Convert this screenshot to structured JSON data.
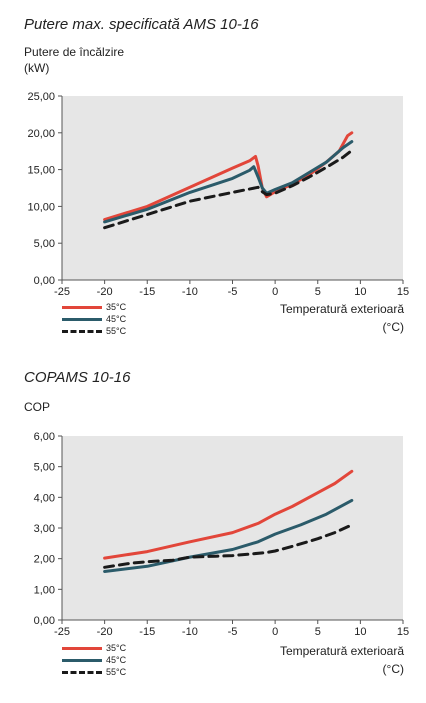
{
  "colors": {
    "s35": "#e2463a",
    "s45": "#2b5b6a",
    "s55": "#1a1a1a",
    "plot_bg": "#e6e6e6"
  },
  "charts": [
    {
      "title": "Putere max. specificată AMS 10-16",
      "ylabel_line1": "Putere de încălzire",
      "ylabel_line2": "(kW)",
      "xlabel_line1": "Temperatură exterioară",
      "xlabel_line2": "(°C)",
      "legend": [
        "35°C",
        "45°C",
        "55°C"
      ]
    },
    {
      "title": "COPAMS 10-16",
      "ylabel_line1": "COP",
      "xlabel_line1": "Temperatură exterioară",
      "xlabel_line2": "(°C)",
      "legend": [
        "35°C",
        "45°C",
        "55°C"
      ]
    }
  ],
  "chart_data": [
    {
      "type": "line",
      "title": "Putere max. specificată AMS 10-16",
      "xlabel": "Temperatură exterioară (°C)",
      "ylabel": "Putere de încălzire (kW)",
      "xlim": [
        -25,
        15
      ],
      "ylim": [
        0,
        25
      ],
      "xticks": [
        -25,
        -20,
        -15,
        -10,
        -5,
        0,
        5,
        10,
        15
      ],
      "xtick_labels": [
        "-25",
        "-20",
        "-15",
        "-10",
        "-5",
        "0",
        "5",
        "10",
        "15"
      ],
      "yticks": [
        0,
        5,
        10,
        15,
        20,
        25
      ],
      "ytick_labels": [
        "0,00",
        "5,00",
        "10,00",
        "15,00",
        "20,00",
        "25,00"
      ],
      "grid": false,
      "legend_position": "bottom-left",
      "series": [
        {
          "name": "35°C",
          "color": "#e2463a",
          "dash": "solid",
          "x": [
            -20,
            -15,
            -10,
            -5,
            -3,
            -2.3,
            -2,
            -1.5,
            -1,
            0,
            2,
            4,
            6,
            7.5,
            8.5,
            9
          ],
          "y": [
            8.2,
            10.0,
            12.6,
            15.2,
            16.2,
            16.8,
            15.5,
            12.5,
            11.3,
            12.0,
            13.0,
            14.3,
            16.0,
            17.5,
            19.6,
            20.0
          ]
        },
        {
          "name": "45°C",
          "color": "#2b5b6a",
          "dash": "solid",
          "x": [
            -20,
            -15,
            -10,
            -5,
            -3,
            -2.5,
            -2,
            -1.5,
            -1,
            0,
            2,
            4,
            6,
            8,
            9
          ],
          "y": [
            7.9,
            9.6,
            11.9,
            13.8,
            14.9,
            15.4,
            14.0,
            12.5,
            11.8,
            12.3,
            13.2,
            14.6,
            16.0,
            18.0,
            18.8
          ]
        },
        {
          "name": "55°C",
          "color": "#1a1a1a",
          "dash": "dashed",
          "x": [
            -20,
            -15,
            -10,
            -5,
            -2,
            -1.5,
            -1,
            0,
            2,
            4,
            6,
            8,
            9
          ],
          "y": [
            7.1,
            8.9,
            10.7,
            11.9,
            12.6,
            12.0,
            11.6,
            11.8,
            12.8,
            14.0,
            15.3,
            16.7,
            17.6
          ]
        }
      ]
    },
    {
      "type": "line",
      "title": "COPAMS 10-16",
      "xlabel": "Temperatură exterioară (°C)",
      "ylabel": "COP",
      "xlim": [
        -25,
        15
      ],
      "ylim": [
        0,
        6
      ],
      "xticks": [
        -25,
        -20,
        -15,
        -10,
        -5,
        0,
        5,
        10,
        15
      ],
      "xtick_labels": [
        "-25",
        "-20",
        "-15",
        "-10",
        "-5",
        "0",
        "5",
        "10",
        "15"
      ],
      "yticks": [
        0,
        1,
        2,
        3,
        4,
        5,
        6
      ],
      "ytick_labels": [
        "0,00",
        "1,00",
        "2,00",
        "3,00",
        "4,00",
        "5,00",
        "6,00"
      ],
      "grid": false,
      "legend_position": "bottom-left",
      "series": [
        {
          "name": "35°C",
          "color": "#e2463a",
          "dash": "solid",
          "x": [
            -20,
            -15,
            -10,
            -5,
            -2,
            0,
            2,
            5,
            7,
            9
          ],
          "y": [
            2.02,
            2.23,
            2.55,
            2.85,
            3.15,
            3.45,
            3.7,
            4.15,
            4.45,
            4.85
          ]
        },
        {
          "name": "45°C",
          "color": "#2b5b6a",
          "dash": "solid",
          "x": [
            -20,
            -15,
            -10,
            -5,
            -2,
            0,
            3,
            6,
            9
          ],
          "y": [
            1.58,
            1.75,
            2.05,
            2.3,
            2.55,
            2.8,
            3.1,
            3.45,
            3.9
          ]
        },
        {
          "name": "55°C",
          "color": "#1a1a1a",
          "dash": "dashed",
          "x": [
            -20,
            -17,
            -15,
            -12,
            -10,
            -7,
            -5,
            -3,
            -1,
            0,
            2,
            5,
            7,
            9
          ],
          "y": [
            1.72,
            1.85,
            1.9,
            1.95,
            2.05,
            2.08,
            2.1,
            2.15,
            2.2,
            2.25,
            2.4,
            2.65,
            2.85,
            3.1
          ]
        }
      ]
    }
  ]
}
